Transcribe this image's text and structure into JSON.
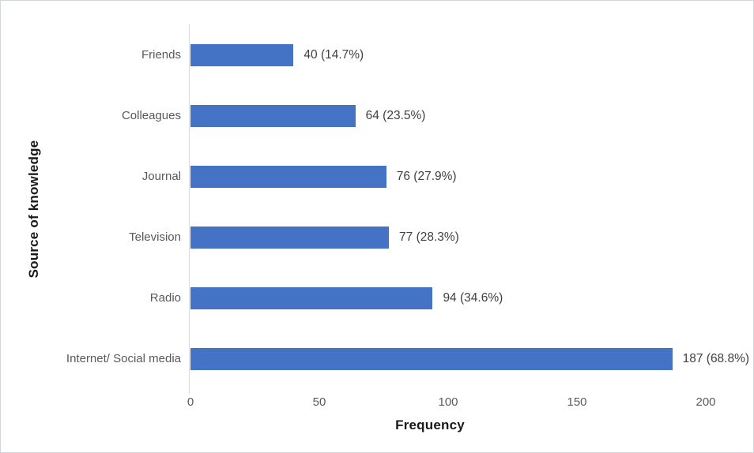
{
  "chart_data": {
    "type": "bar",
    "orientation": "horizontal",
    "title": "",
    "categories": [
      "Friends",
      "Colleagues",
      "Journal",
      "Television",
      "Radio",
      "Internet/ Social media"
    ],
    "values": [
      40,
      64,
      76,
      77,
      94,
      187
    ],
    "data_labels": [
      "40 (14.7%)",
      "64 (23.5%)",
      "76 (27.9%)",
      "77 (28.3%)",
      "94 (34.6%)",
      "187 (68.8%)"
    ],
    "xlabel": "Frequency",
    "ylabel": "Source of knowledge",
    "x_ticks": [
      0,
      50,
      100,
      150,
      200
    ],
    "xlim": [
      0,
      200
    ],
    "grid": false,
    "legend": false,
    "colors": {
      "bar": "#4472C4",
      "category_label": "#595959",
      "tick_label": "#595959",
      "data_label": "#404040",
      "axis_title": "#1a1a1a",
      "axis_line": "#d9d9d9",
      "background": "#ffffff"
    }
  }
}
